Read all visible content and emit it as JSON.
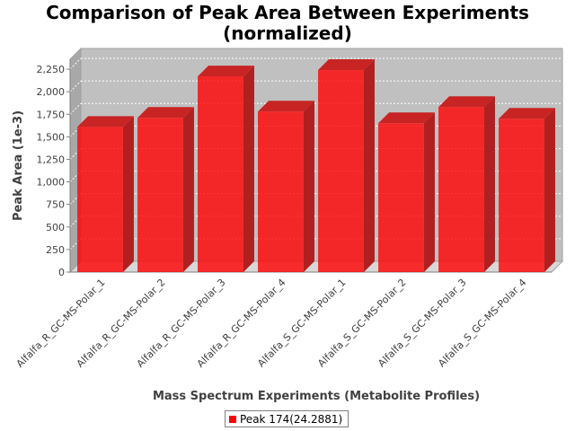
{
  "chart_data": {
    "type": "bar",
    "title": "Comparison of Peak Area Between Experiments",
    "subtitle": "(normalized)",
    "xlabel": "Mass Spectrum Experiments (Metabolite Profiles)",
    "ylabel": "Peak Area (1e-3)",
    "ylim": [
      0,
      2360
    ],
    "yticks": [
      0,
      250,
      500,
      750,
      1000,
      1250,
      1500,
      1750,
      2000,
      2250
    ],
    "ytick_labels": [
      "0",
      "250",
      "500",
      "750",
      "1,000",
      "1,250",
      "1,500",
      "1,750",
      "2,000",
      "2,250"
    ],
    "grid": true,
    "legend_position": "bottom",
    "categories": [
      "Alfalfa_R_GC-MS-Polar_1",
      "Alfalfa_R_GC-MS-Polar_2",
      "Alfalfa_R_GC-MS-Polar_3",
      "Alfalfa_R_GC-MS-Polar_4",
      "Alfalfa_S_GC-MS-Polar_1",
      "Alfalfa_S_GC-MS-Polar_2",
      "Alfalfa_S_GC-MS-Polar_3",
      "Alfalfa_S_GC-MS-Polar_4"
    ],
    "series": [
      {
        "name": "Peak 174(24.2881)",
        "color": "#ff0000",
        "values": [
          1610,
          1710,
          2170,
          1780,
          2240,
          1650,
          1830,
          1700
        ]
      }
    ]
  }
}
